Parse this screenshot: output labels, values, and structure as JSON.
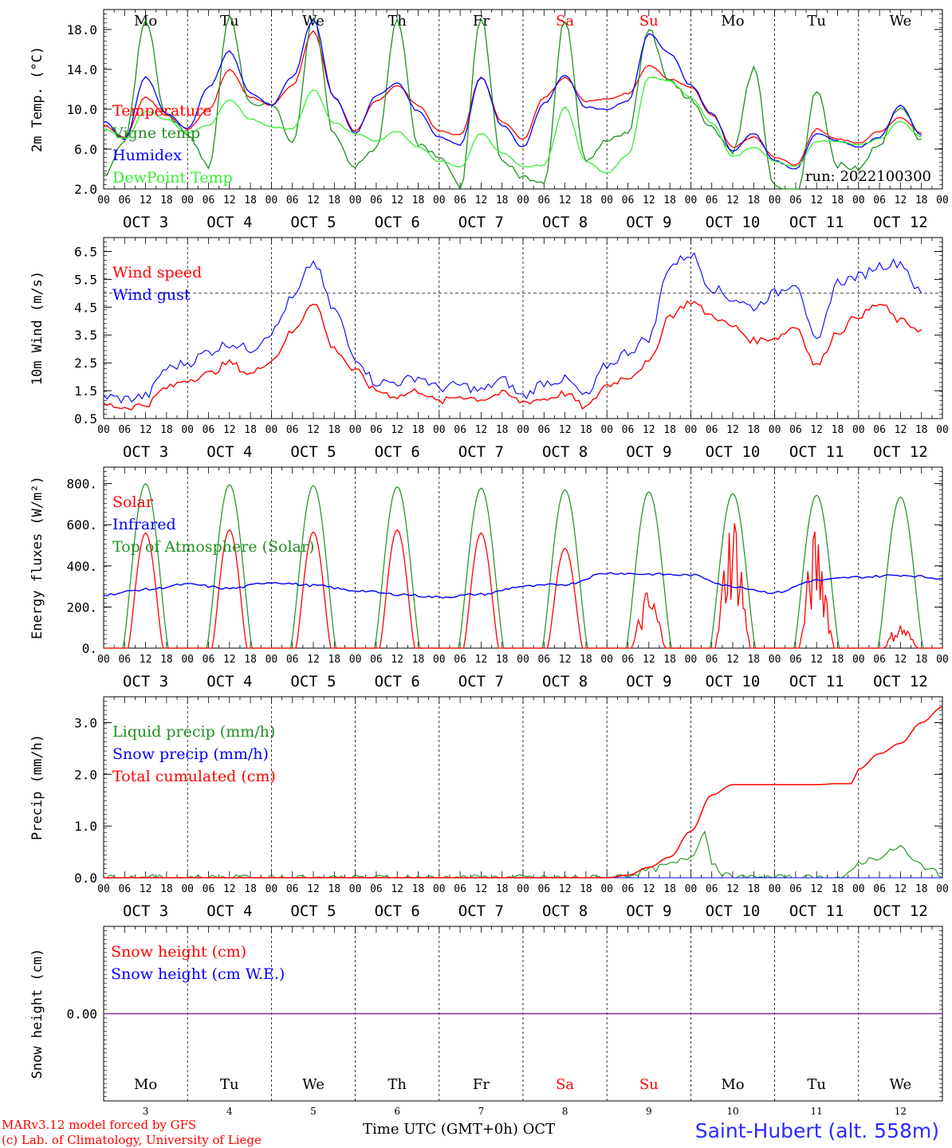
{
  "run_label": "run: 2022100300",
  "footer": {
    "model": "MARv3.12 model forced by GFS",
    "credit": "(c) Lab. of Climatology, University of Liege",
    "axis_title": "Time UTC (GMT+0h) OCT",
    "station": "Saint-Hubert (alt. 558m)"
  },
  "colors": {
    "red": "#ff0000",
    "green": "#1f8f1f",
    "blue": "#0000ff",
    "lightgreen": "#33ee33",
    "snow": "#7a2f9a",
    "weekend": "#ff0000"
  },
  "days": {
    "weekday_labels": [
      "Mo",
      "Tu",
      "We",
      "Th",
      "Fr",
      "Sa",
      "Su",
      "Mo",
      "Tu",
      "We"
    ],
    "weekend_index": [
      5,
      6
    ],
    "date_labels": [
      "OCT  3",
      "OCT  4",
      "OCT  5",
      "OCT  6",
      "OCT  7",
      "OCT  8",
      "OCT  9",
      "OCT 10",
      "OCT 11",
      "OCT 12"
    ],
    "day_numbers": [
      "3",
      "4",
      "5",
      "6",
      "7",
      "8",
      "9",
      "10",
      "11",
      "12"
    ],
    "hour_labels": [
      "00",
      "06",
      "12",
      "18"
    ],
    "end_hour_label": "00"
  },
  "chart_data": [
    {
      "type": "line",
      "ylabel": "2m Temp. (°C)",
      "ylim": [
        2,
        20
      ],
      "yticks": [
        "2.0",
        "6.0",
        "10.0",
        "14.0",
        "18.0"
      ],
      "x_unit": "hours since Oct 3 00 UTC",
      "legend": [
        "Temperature",
        "Vigne temp",
        "Humidex",
        "DewPoint Temp"
      ],
      "series": [
        {
          "name": "Temperature",
          "color": "red",
          "x": [
            0,
            6,
            12,
            18,
            24,
            30,
            36,
            42,
            48,
            54,
            60,
            66,
            72,
            78,
            84,
            90,
            96,
            102,
            108,
            114,
            120,
            126,
            132,
            138,
            144,
            150,
            156,
            162,
            168,
            174,
            180,
            186,
            192,
            198,
            204,
            210,
            216,
            222,
            228,
            234
          ],
          "y": [
            8.4,
            7.2,
            11.2,
            9.4,
            8.0,
            10.0,
            14.0,
            11.2,
            10.4,
            12.4,
            17.8,
            11.2,
            7.8,
            10.8,
            12.4,
            10.4,
            7.8,
            7.4,
            13.2,
            8.8,
            7.0,
            11.2,
            13.2,
            10.8,
            11.0,
            11.6,
            14.4,
            13.0,
            12.2,
            9.4,
            6.2,
            7.2,
            5.2,
            4.4,
            8.0,
            7.0,
            6.6,
            7.8,
            9.2,
            7.6
          ]
        },
        {
          "name": "Vigne temp",
          "color": "green",
          "x": [
            0,
            6,
            12,
            18,
            24,
            30,
            36,
            42,
            48,
            54,
            60,
            66,
            72,
            78,
            84,
            90,
            96,
            102,
            108,
            114,
            120,
            126,
            132,
            138,
            144,
            150,
            156,
            162,
            168,
            174,
            180,
            186,
            192,
            198,
            204,
            210,
            216,
            222,
            228,
            234
          ],
          "y": [
            3.4,
            7.0,
            19.0,
            9.2,
            7.6,
            4.2,
            19.2,
            10.4,
            10.6,
            6.6,
            19.0,
            7.4,
            4.2,
            6.2,
            19.0,
            6.6,
            5.4,
            2.2,
            19.0,
            4.8,
            3.2,
            2.8,
            19.0,
            5.0,
            6.8,
            7.6,
            18.0,
            12.8,
            11.0,
            8.2,
            5.8,
            14.0,
            2.2,
            0.6,
            12.0,
            4.4,
            4.0,
            6.6,
            10.4,
            7.0
          ]
        },
        {
          "name": "Humidex",
          "color": "blue",
          "x": [
            0,
            6,
            12,
            18,
            24,
            30,
            36,
            42,
            48,
            54,
            60,
            66,
            72,
            78,
            84,
            90,
            96,
            102,
            108,
            114,
            120,
            126,
            132,
            138,
            144,
            150,
            156,
            162,
            168,
            174,
            180,
            186,
            192,
            198,
            204,
            210,
            216,
            222,
            228,
            234
          ],
          "y": [
            8.8,
            7.0,
            13.2,
            9.6,
            8.0,
            12.2,
            15.8,
            11.6,
            10.4,
            13.2,
            19.0,
            11.2,
            7.6,
            11.4,
            12.6,
            9.8,
            7.2,
            6.4,
            13.2,
            8.4,
            6.2,
            10.6,
            13.4,
            10.2,
            10.0,
            10.8,
            17.6,
            15.6,
            12.4,
            9.6,
            5.8,
            7.6,
            4.8,
            4.0,
            7.6,
            6.8,
            6.2,
            7.2,
            10.4,
            7.4
          ]
        },
        {
          "name": "DewPoint Temp",
          "color": "lightgreen",
          "x": [
            0,
            6,
            12,
            18,
            24,
            30,
            36,
            42,
            48,
            54,
            60,
            66,
            72,
            78,
            84,
            90,
            96,
            102,
            108,
            114,
            120,
            126,
            132,
            138,
            144,
            150,
            156,
            162,
            168,
            174,
            180,
            186,
            192,
            198,
            204,
            210,
            216,
            222,
            228,
            234
          ],
          "y": [
            8.0,
            7.0,
            9.8,
            9.0,
            7.6,
            8.4,
            11.0,
            9.0,
            8.2,
            8.0,
            12.0,
            8.6,
            7.6,
            6.8,
            7.8,
            6.2,
            4.8,
            4.2,
            7.6,
            5.6,
            4.2,
            4.4,
            10.2,
            4.8,
            3.6,
            5.4,
            13.2,
            12.8,
            11.2,
            8.6,
            5.2,
            6.2,
            4.8,
            4.2,
            6.8,
            6.8,
            6.4,
            7.0,
            8.8,
            7.2
          ]
        }
      ]
    },
    {
      "type": "line",
      "ylabel": "10m Wind (m/s)",
      "ylim": [
        0.5,
        7
      ],
      "yticks": [
        "0.5",
        "1.5",
        "2.5",
        "3.5",
        "4.5",
        "5.5",
        "6.5"
      ],
      "reference_line": 5,
      "legend": [
        "Wind speed",
        "Wind gust"
      ],
      "series": [
        {
          "name": "Wind speed",
          "color": "red",
          "x": [
            0,
            6,
            12,
            18,
            24,
            30,
            36,
            42,
            48,
            54,
            60,
            66,
            72,
            78,
            84,
            90,
            96,
            102,
            108,
            114,
            120,
            126,
            132,
            138,
            144,
            150,
            156,
            162,
            168,
            174,
            180,
            186,
            192,
            198,
            204,
            210,
            216,
            222,
            228,
            234
          ],
          "y": [
            1.0,
            0.9,
            1.0,
            1.6,
            1.9,
            2.1,
            2.5,
            2.1,
            2.6,
            3.6,
            4.7,
            3.0,
            2.2,
            1.5,
            1.3,
            1.5,
            1.1,
            1.3,
            1.2,
            1.4,
            1.1,
            1.2,
            1.4,
            0.9,
            1.7,
            2.0,
            2.5,
            4.2,
            4.7,
            4.2,
            3.8,
            3.3,
            3.4,
            3.8,
            2.4,
            3.6,
            4.2,
            4.6,
            4.0,
            3.7
          ]
        },
        {
          "name": "Wind gust",
          "color": "blue",
          "x": [
            0,
            6,
            12,
            18,
            24,
            30,
            36,
            42,
            48,
            54,
            60,
            66,
            72,
            78,
            84,
            90,
            96,
            102,
            108,
            114,
            120,
            126,
            132,
            138,
            144,
            150,
            156,
            162,
            168,
            174,
            180,
            186,
            192,
            198,
            204,
            210,
            216,
            222,
            228,
            234
          ],
          "y": [
            1.3,
            1.2,
            1.3,
            2.3,
            2.5,
            2.9,
            3.2,
            3.0,
            3.6,
            4.8,
            6.1,
            4.4,
            2.7,
            1.8,
            1.8,
            2.0,
            1.6,
            1.7,
            1.5,
            1.9,
            1.3,
            1.8,
            1.9,
            1.3,
            2.4,
            2.9,
            3.4,
            6.0,
            6.4,
            5.2,
            4.8,
            4.5,
            5.0,
            5.4,
            3.2,
            5.4,
            5.6,
            6.0,
            6.1,
            5.0
          ]
        }
      ]
    },
    {
      "type": "line",
      "ylabel": "Energy fluxes (W/m²)",
      "ylim": [
        0,
        880
      ],
      "yticks": [
        "0.",
        "200.",
        "400.",
        "600.",
        "800."
      ],
      "legend": [
        "Solar",
        "Infrared",
        "Top of Atmosphere (Solar)"
      ],
      "toa_peaks": [
        800,
        795,
        790,
        785,
        778,
        770,
        760,
        752,
        744,
        735
      ],
      "solar_peaks": [
        560,
        575,
        565,
        575,
        560,
        485,
        230,
        540,
        460,
        100
      ],
      "infrared": {
        "x": [
          0,
          12,
          24,
          36,
          48,
          60,
          72,
          84,
          96,
          108,
          120,
          132,
          144,
          156,
          168,
          180,
          192,
          204,
          216,
          228,
          240
        ],
        "y": [
          260,
          285,
          310,
          290,
          320,
          305,
          280,
          262,
          248,
          262,
          300,
          310,
          365,
          360,
          355,
          300,
          270,
          330,
          345,
          355,
          340
        ]
      },
      "series_colors": {
        "Solar": "red",
        "Infrared": "blue",
        "Top of Atmosphere (Solar)": "green"
      }
    },
    {
      "type": "line",
      "ylabel": "Precip (mm/h)",
      "ylim": [
        0,
        3.5
      ],
      "yticks": [
        "0.0",
        "1.0",
        "2.0",
        "3.0"
      ],
      "legend": [
        "Liquid precip (mm/h)",
        "Snow precip (mm/h)",
        "Total cumulated (cm)"
      ],
      "series": [
        {
          "name": "Total cumulated (cm)",
          "color": "red",
          "x": [
            0,
            144,
            150,
            156,
            162,
            168,
            174,
            180,
            186,
            192,
            198,
            204,
            210,
            214,
            216,
            222,
            228,
            234,
            240
          ],
          "y": [
            0,
            0,
            0.05,
            0.2,
            0.4,
            0.9,
            1.6,
            1.8,
            1.8,
            1.8,
            1.8,
            1.8,
            1.82,
            1.82,
            2.1,
            2.4,
            2.6,
            3.0,
            3.3
          ]
        },
        {
          "name": "Liquid precip (mm/h)",
          "color": "green",
          "x": [
            0,
            144,
            150,
            156,
            162,
            168,
            172,
            174,
            178,
            180,
            204,
            212,
            214,
            216,
            222,
            228,
            232,
            236,
            240
          ],
          "y": [
            0,
            0,
            0.05,
            0.15,
            0.25,
            0.4,
            0.9,
            0.3,
            0.05,
            0,
            0,
            0,
            0.1,
            0.3,
            0.4,
            0.6,
            0.3,
            0.2,
            0.0
          ]
        },
        {
          "name": "Snow precip (mm/h)",
          "color": "blue",
          "x": [
            0,
            240
          ],
          "y": [
            0,
            0
          ]
        }
      ]
    },
    {
      "type": "line",
      "ylabel": "Snow height (cm)",
      "yticks": [
        "0.00"
      ],
      "legend": [
        "Snow height (cm)",
        "Snow height (cm W.E.)"
      ],
      "series": [
        {
          "name": "Snow height (cm)",
          "color": "snow",
          "x": [
            0,
            240
          ],
          "y": [
            0,
            0
          ]
        }
      ]
    }
  ]
}
